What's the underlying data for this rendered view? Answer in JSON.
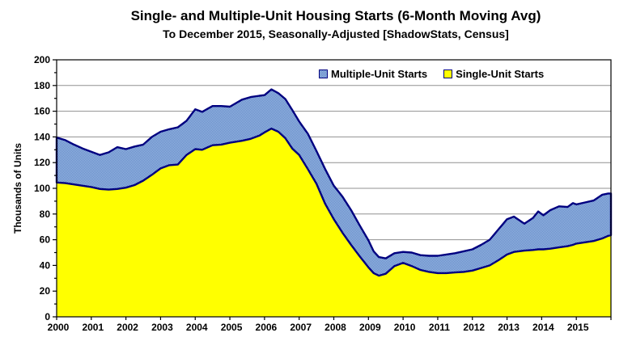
{
  "title": "Single- and Multiple-Unit Housing Starts (6-Month Moving Avg)",
  "subtitle": "To December 2015, Seasonally-Adjusted [ShadowStats, Census]",
  "colors": {
    "single_fill": "#FFFF00",
    "multiple_fill_dark": "#5E86C6",
    "multiple_fill_light": "#9FBCE4",
    "area_border": "#000080",
    "grid": "#909090",
    "axis": "#000000",
    "text": "#000000",
    "background": "#FFFFFF"
  },
  "legend": {
    "items": [
      {
        "label": "Multiple-Unit Starts",
        "color_key": "multiple"
      },
      {
        "label": "Single-Unit Starts",
        "color_key": "single"
      }
    ]
  },
  "chart_data": {
    "type": "area",
    "stacked": true,
    "title": "Single- and Multiple-Unit Housing Starts (6-Month Moving Avg)",
    "subtitle": "To December 2015, Seasonally-Adjusted [ShadowStats, Census]",
    "xlabel": "",
    "ylabel": "Thousands of Units",
    "ylim": [
      0,
      200
    ],
    "ytick_step": 20,
    "xlim": [
      2000,
      2016
    ],
    "xticks": [
      2000,
      2001,
      2002,
      2003,
      2004,
      2005,
      2006,
      2007,
      2008,
      2009,
      2010,
      2011,
      2012,
      2013,
      2014,
      2015
    ],
    "grid": "horizontal",
    "legend_position": "top-inside",
    "x_units": "decimal-year",
    "y_units": "thousands of units",
    "x": [
      2000,
      2000.25,
      2000.5,
      2000.75,
      2001,
      2001.25,
      2001.5,
      2001.75,
      2002,
      2002.25,
      2002.5,
      2002.75,
      2003,
      2003.25,
      2003.5,
      2003.75,
      2004,
      2004.2,
      2004.5,
      2004.75,
      2005,
      2005.35,
      2005.6,
      2005.85,
      2006,
      2006.2,
      2006.4,
      2006.6,
      2006.8,
      2007,
      2007.25,
      2007.5,
      2007.75,
      2008,
      2008.25,
      2008.5,
      2008.75,
      2009,
      2009.15,
      2009.3,
      2009.5,
      2009.75,
      2010,
      2010.25,
      2010.5,
      2010.75,
      2011,
      2011.25,
      2011.5,
      2011.75,
      2012,
      2012.25,
      2012.5,
      2012.75,
      2013,
      2013.2,
      2013.5,
      2013.75,
      2013.9,
      2014.05,
      2014.25,
      2014.5,
      2014.75,
      2014.9,
      2015,
      2015.25,
      2015.5,
      2015.75,
      2015.92,
      2016
    ],
    "series": [
      {
        "name": "Single-Unit Starts",
        "values": [
          104.5,
          104,
          103,
          102,
          101,
          99.5,
          99,
          99.5,
          100.5,
          102.5,
          106,
          110.5,
          115.5,
          118,
          118.5,
          126,
          130.5,
          130,
          133.5,
          134,
          135.5,
          137,
          138.5,
          141,
          143.5,
          146.5,
          144,
          139,
          131,
          126,
          115,
          103.5,
          88,
          76,
          65.5,
          56,
          47,
          38.5,
          34,
          32,
          33.5,
          39.5,
          42,
          39.5,
          36.5,
          35,
          34,
          34,
          34.5,
          35,
          36,
          38,
          40,
          44,
          48.5,
          50.5,
          51.5,
          52,
          52.5,
          52.5,
          53,
          54,
          55,
          56,
          57,
          58,
          59,
          61,
          63,
          63.5
        ]
      },
      {
        "name": "Multiple-Unit Starts",
        "values": [
          35,
          33.5,
          31,
          29,
          27.5,
          26.5,
          29,
          32.5,
          30,
          30,
          28,
          29.5,
          28.5,
          28,
          29,
          26.5,
          31,
          29.5,
          30.5,
          30,
          28,
          32,
          32.5,
          31,
          29,
          30.5,
          30,
          30.5,
          30,
          26,
          27.5,
          25.5,
          27,
          26,
          28,
          27,
          24,
          21,
          17,
          14.5,
          12,
          10,
          8.5,
          10.5,
          11.5,
          12.5,
          13.5,
          14.5,
          15,
          16,
          16.5,
          18,
          20,
          24,
          27.5,
          27.5,
          21,
          25,
          29.5,
          26.5,
          30,
          32,
          30.5,
          32.5,
          30.5,
          31,
          31.5,
          34,
          33,
          32.5
        ]
      }
    ]
  }
}
